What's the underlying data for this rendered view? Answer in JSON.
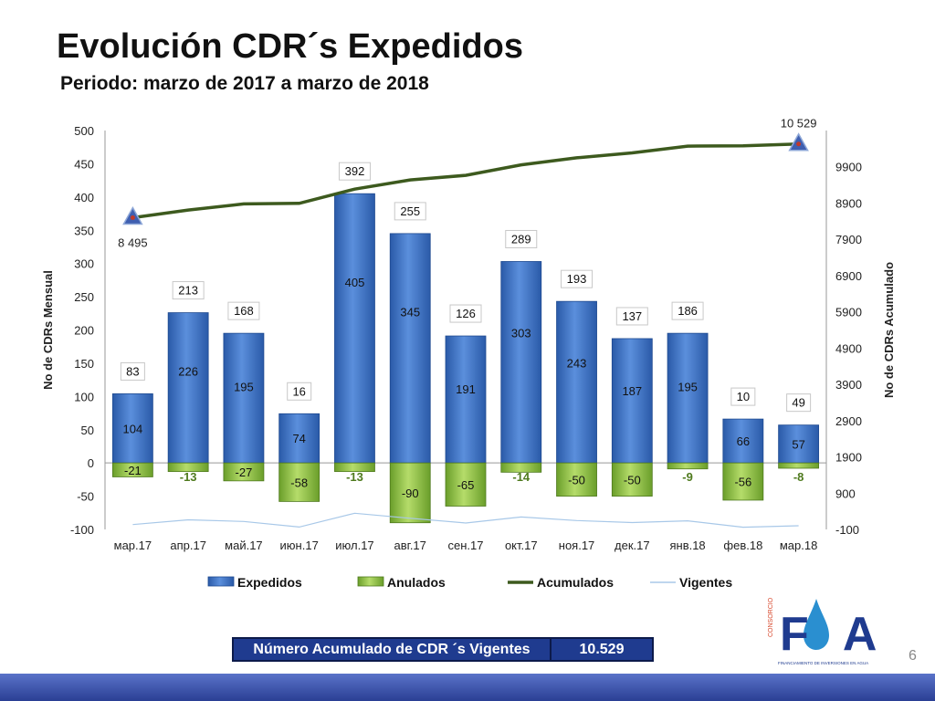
{
  "slide": {
    "title": "Evolución CDR´s Expedidos",
    "subtitle": "Periodo: marzo de 2017 a marzo de 2018",
    "page_number": "6",
    "summary_label": "Número Acumulado de CDR ´s Vigentes",
    "summary_value": "10.529",
    "logo_text": "FA",
    "logo_side_text": "CONSORCIO",
    "logo_caption": "FINANCIAMIENTO DE INVERSIONES EN AGUA"
  },
  "chart_data": {
    "type": "bar",
    "ylabel": "No de CDRs Mensual",
    "y2label": "No de CDRs Acumulado",
    "ylim": [
      -100,
      500
    ],
    "yticks": [
      -100,
      -50,
      0,
      50,
      100,
      150,
      200,
      250,
      300,
      350,
      400,
      450,
      500
    ],
    "y2lim": [
      -100,
      10900
    ],
    "y2ticks": [
      -100,
      900,
      1900,
      2900,
      3900,
      4900,
      5900,
      6900,
      7900,
      8900,
      9900
    ],
    "categories": [
      "мар.17",
      "апр.17",
      "май.17",
      "июн.17",
      "июл.17",
      "авг.17",
      "сен.17",
      "окт.17",
      "ноя.17",
      "дек.17",
      "янв.18",
      "фев.18",
      "мар.18"
    ],
    "legend_position": "bottom",
    "series": [
      {
        "name": "Expedidos",
        "type": "bar",
        "color": "#3a70c8",
        "values": [
          104,
          226,
          195,
          74,
          405,
          345,
          191,
          303,
          243,
          187,
          195,
          66,
          57
        ]
      },
      {
        "name": "Anulados",
        "type": "bar",
        "color": "#7fb33a",
        "values": [
          -21,
          -13,
          -27,
          -58,
          -13,
          -90,
          -65,
          -14,
          -50,
          -50,
          -9,
          -56,
          -8
        ]
      },
      {
        "name": "Acumulados",
        "type": "line",
        "axis": "secondary",
        "color": "#3d5a1e",
        "values": [
          8495,
          8708,
          8876,
          8892,
          9284,
          9539,
          9665,
          9954,
          10147,
          10284,
          10470,
          10480,
          10529
        ]
      },
      {
        "name": "Vigentes",
        "type": "line",
        "color": "#a8c8e8",
        "values": [
          83,
          213,
          168,
          16,
          392,
          255,
          126,
          289,
          193,
          137,
          186,
          10,
          49
        ]
      }
    ],
    "accum_labels": [
      {
        "index": 0,
        "text": "8 495"
      },
      {
        "index": 12,
        "text": "10 529"
      }
    ]
  }
}
